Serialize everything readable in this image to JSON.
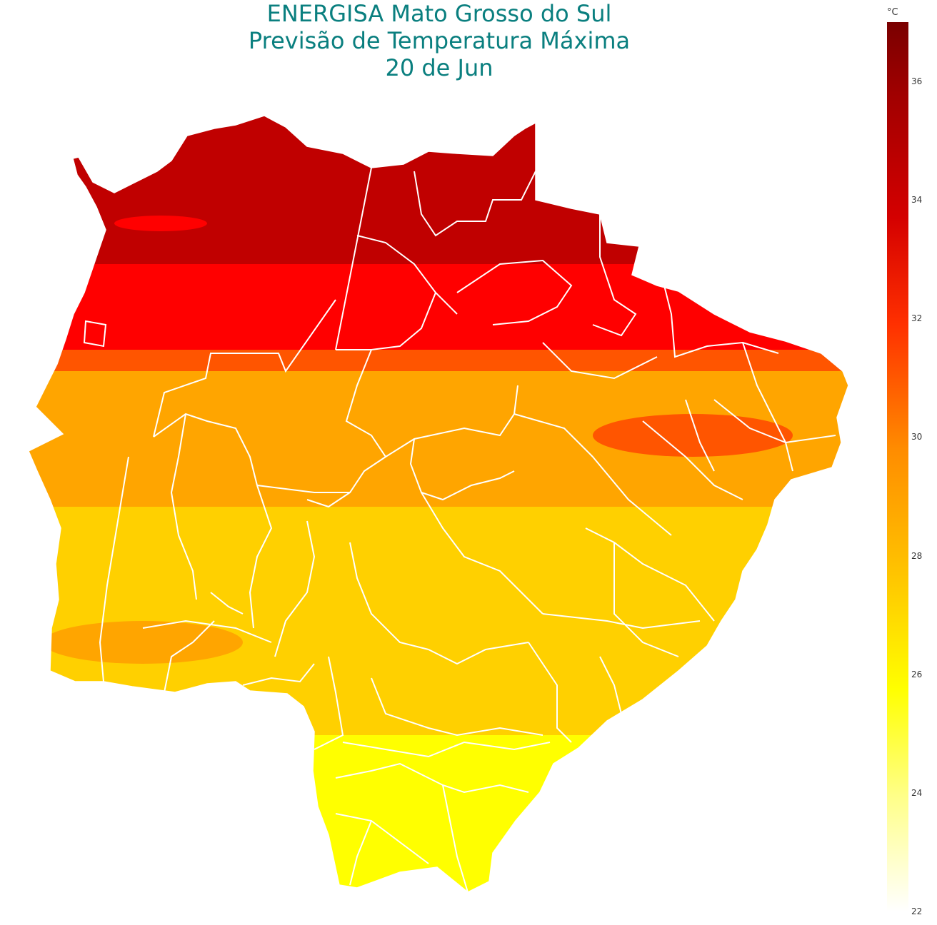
{
  "title": {
    "line1": "ENERGISA Mato Grosso do Sul",
    "line2": "Previsão de Temperatura Máxima",
    "line3": "20 de Jun"
  },
  "colorbar": {
    "unit": "°C",
    "ticks": [
      "36",
      "34",
      "32",
      "30",
      "28",
      "26",
      "24",
      "22"
    ],
    "range": [
      22,
      37
    ]
  },
  "chart_data": {
    "type": "heatmap",
    "title": "ENERGISA Mato Grosso do Sul\nPrevisão de Temperatura Máxima\n20 de Jun",
    "variable": "Temperatura Máxima",
    "unit": "°C",
    "colorscale_range": [
      22,
      37
    ],
    "bands_north_to_south": [
      {
        "value": 35,
        "color": "#c00000"
      },
      {
        "value": 33,
        "color": "#ff0000"
      },
      {
        "value": 31,
        "color": "#ff5500"
      },
      {
        "value": 29.5,
        "color": "#ffa500"
      },
      {
        "value": 27.5,
        "color": "#ffd000"
      },
      {
        "value": 26,
        "color": "#ffff00"
      }
    ]
  }
}
